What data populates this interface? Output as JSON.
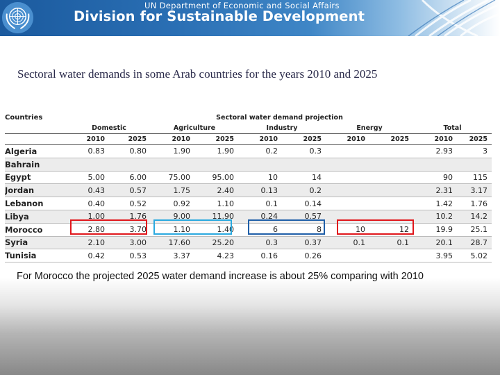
{
  "header": {
    "department": "UN Department of Economic and Social Affairs",
    "division": "Division for Sustainable Development",
    "brand_color": "#1b5a9e"
  },
  "title": "Sectoral water demands in some Arab countries for the years 2010 and 2025",
  "table": {
    "countries_header": "Countries",
    "projection_header": "Sectoral water demand projection",
    "groups": [
      "Domestic",
      "Agriculture",
      "Industry",
      "Energy",
      "Total"
    ],
    "years": [
      "2010",
      "2025",
      "2010",
      "2025",
      "2010",
      "2025",
      "2010",
      "2025",
      "2010",
      "2025"
    ],
    "rows": [
      {
        "country": "Algeria",
        "values": [
          "0.83",
          "0.80",
          "1.90",
          "1.90",
          "0.2",
          "0.3",
          "",
          "",
          "2.93",
          "3"
        ]
      },
      {
        "country": "Bahrain",
        "values": [
          "",
          "",
          "",
          "",
          "",
          "",
          "",
          "",
          "",
          ""
        ]
      },
      {
        "country": "Egypt",
        "values": [
          "5.00",
          "6.00",
          "75.00",
          "95.00",
          "10",
          "14",
          "",
          "",
          "90",
          "115"
        ]
      },
      {
        "country": "Jordan",
        "values": [
          "0.43",
          "0.57",
          "1.75",
          "2.40",
          "0.13",
          "0.2",
          "",
          "",
          "2.31",
          "3.17"
        ]
      },
      {
        "country": "Lebanon",
        "values": [
          "0.40",
          "0.52",
          "0.92",
          "1.10",
          "0.1",
          "0.14",
          "",
          "",
          "1.42",
          "1.76"
        ]
      },
      {
        "country": "Libya",
        "values": [
          "1.00",
          "1.76",
          "9.00",
          "11.90",
          "0.24",
          "0.57",
          "",
          "",
          "10.2",
          "14.2"
        ]
      },
      {
        "country": "Morocco",
        "values": [
          "2.80",
          "3.70",
          "1.10",
          "1.40",
          "6",
          "8",
          "10",
          "12",
          "19.9",
          "25.1"
        ]
      },
      {
        "country": "Syria",
        "values": [
          "2.10",
          "3.00",
          "17.60",
          "25.20",
          "0.3",
          "0.37",
          "0.1",
          "0.1",
          "20.1",
          "28.7"
        ]
      },
      {
        "country": "Tunisia",
        "values": [
          "0.42",
          "0.53",
          "3.37",
          "4.23",
          "0.16",
          "0.26",
          "",
          "",
          "3.95",
          "5.02"
        ]
      }
    ],
    "highlight_colors": [
      "#e0161b",
      "#2aa9df",
      "#1f5fa8",
      "#e0161b"
    ]
  },
  "note": "For Morocco the projected 2025 water demand increase is about 25% comparing with 2010"
}
